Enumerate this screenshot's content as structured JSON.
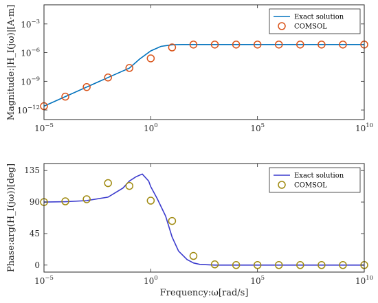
{
  "chart_data": [
    {
      "type": "line",
      "title": "",
      "ylabel": "Magnitude:|H_I(jω)|[A·m]",
      "xlabel": "",
      "x_scale": "log",
      "y_scale": "log",
      "xlim": [
        1e-05,
        10000000000.0
      ],
      "ylim": [
        1e-13,
        0.1
      ],
      "x_ticks": [
        1e-05,
        1,
        100000.0,
        10000000000.0
      ],
      "x_tick_labels": [
        {
          "base": "10",
          "exp": "−5"
        },
        {
          "base": "10",
          "exp": "0"
        },
        {
          "base": "10",
          "exp": "5"
        },
        {
          "base": "10",
          "exp": "10"
        }
      ],
      "y_ticks": [
        1e-12,
        1e-09,
        1e-06,
        0.001
      ],
      "y_tick_labels": [
        {
          "base": "10",
          "exp": "−12"
        },
        {
          "base": "10",
          "exp": "−9"
        },
        {
          "base": "10",
          "exp": "−6"
        },
        {
          "base": "10",
          "exp": "−3"
        }
      ],
      "legend_position": "top-right",
      "series": [
        {
          "name": "Exact solution",
          "style": "line",
          "color": "#0072BD",
          "x": [
            1e-05,
            0.01,
            0.1,
            0.3,
            1,
            3,
            10,
            30,
            100,
            1000,
            10000,
            100000.0,
            1000000.0,
            10000000.0,
            100000000.0,
            1000000000.0,
            10000000000.0
          ],
          "y": [
            2.5e-12,
            2.5e-09,
            2.4e-08,
            2.1e-07,
            1.5e-06,
            4.5e-06,
            6.6e-06,
            7e-06,
            7e-06,
            7e-06,
            7e-06,
            7e-06,
            7e-06,
            7e-06,
            7e-06,
            7e-06,
            7e-06
          ]
        },
        {
          "name": "COMSOL",
          "style": "markers",
          "color": "#D95319",
          "x": [
            1e-05,
            0.0001,
            0.001,
            0.01,
            0.1,
            1,
            10,
            100,
            1000,
            10000,
            100000.0,
            1000000.0,
            10000000.0,
            100000000.0,
            1000000000.0,
            10000000000.0
          ],
          "y": [
            2.5e-12,
            2.5e-11,
            2.5e-10,
            2.5e-09,
            2.5e-08,
            2.5e-07,
            3.5e-06,
            7e-06,
            7e-06,
            7e-06,
            7e-06,
            7e-06,
            7e-06,
            7e-06,
            7e-06,
            7e-06
          ]
        }
      ]
    },
    {
      "type": "line",
      "title": "",
      "ylabel": "Phase:arg(H_I(jω))[deg]",
      "xlabel": "Frequency:ω[rad/s]",
      "x_scale": "log",
      "y_scale": "linear",
      "xlim": [
        1e-05,
        10000000000.0
      ],
      "ylim": [
        -10,
        145
      ],
      "x_ticks": [
        1e-05,
        1,
        100000.0,
        10000000000.0
      ],
      "x_tick_labels": [
        {
          "base": "10",
          "exp": "−5"
        },
        {
          "base": "10",
          "exp": "0"
        },
        {
          "base": "10",
          "exp": "5"
        },
        {
          "base": "10",
          "exp": "10"
        }
      ],
      "y_ticks": [
        0,
        45,
        90,
        135
      ],
      "y_tick_labels": [
        "0",
        "45",
        "90",
        "135"
      ],
      "legend_position": "top-right",
      "series": [
        {
          "name": "Exact solution",
          "style": "line",
          "color": "#3A3ACD",
          "x": [
            1e-05,
            0.0001,
            0.001,
            0.01,
            0.05,
            0.1,
            0.2,
            0.4,
            0.8,
            1,
            2,
            5,
            10,
            20,
            50,
            100,
            200,
            1000,
            10000,
            100000.0,
            1000000.0,
            10000000.0,
            100000000.0,
            1000000000.0,
            10000000000.0
          ],
          "y": [
            90,
            90.5,
            92,
            97,
            110,
            120,
            126,
            130,
            120,
            112,
            95,
            70,
            40,
            20,
            8,
            3,
            1,
            0,
            0,
            0,
            0,
            0,
            0,
            0,
            0
          ]
        },
        {
          "name": "COMSOL",
          "style": "markers",
          "color": "#A08A10",
          "x": [
            1e-05,
            0.0001,
            0.001,
            0.01,
            0.1,
            1,
            10,
            100,
            1000,
            10000,
            100000.0,
            1000000.0,
            10000000.0,
            100000000.0,
            1000000000.0,
            10000000000.0
          ],
          "y": [
            90,
            91,
            94,
            117,
            113,
            92,
            63,
            13,
            1,
            0,
            0,
            0,
            0,
            0,
            0,
            0
          ]
        }
      ]
    }
  ]
}
